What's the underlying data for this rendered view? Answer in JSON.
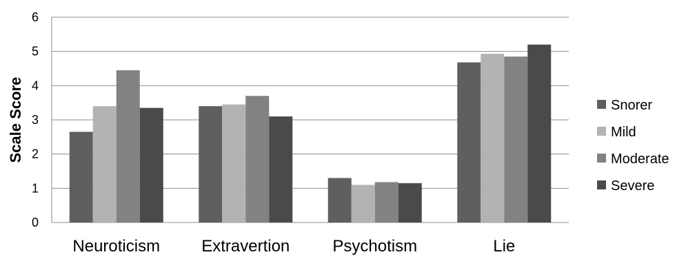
{
  "chart_data": {
    "type": "bar",
    "title": "",
    "xlabel": "",
    "ylabel": "Scale Score",
    "ylim": [
      0,
      6
    ],
    "yticks": [
      0,
      1,
      2,
      3,
      4,
      5,
      6
    ],
    "grid": true,
    "legend_position": "right",
    "categories": [
      "Neuroticism",
      "Extravertion",
      "Psychotism",
      "Lie"
    ],
    "series": [
      {
        "name": "Snorer",
        "color": "#5f5f5f",
        "values": [
          2.65,
          3.4,
          1.3,
          4.68
        ]
      },
      {
        "name": "Mild",
        "color": "#b3b3b3",
        "values": [
          3.4,
          3.45,
          1.1,
          4.93
        ]
      },
      {
        "name": "Moderate",
        "color": "#828282",
        "values": [
          4.45,
          3.7,
          1.18,
          4.85
        ]
      },
      {
        "name": "Severe",
        "color": "#4a4a4a",
        "values": [
          3.35,
          3.1,
          1.15,
          5.2
        ]
      }
    ]
  }
}
